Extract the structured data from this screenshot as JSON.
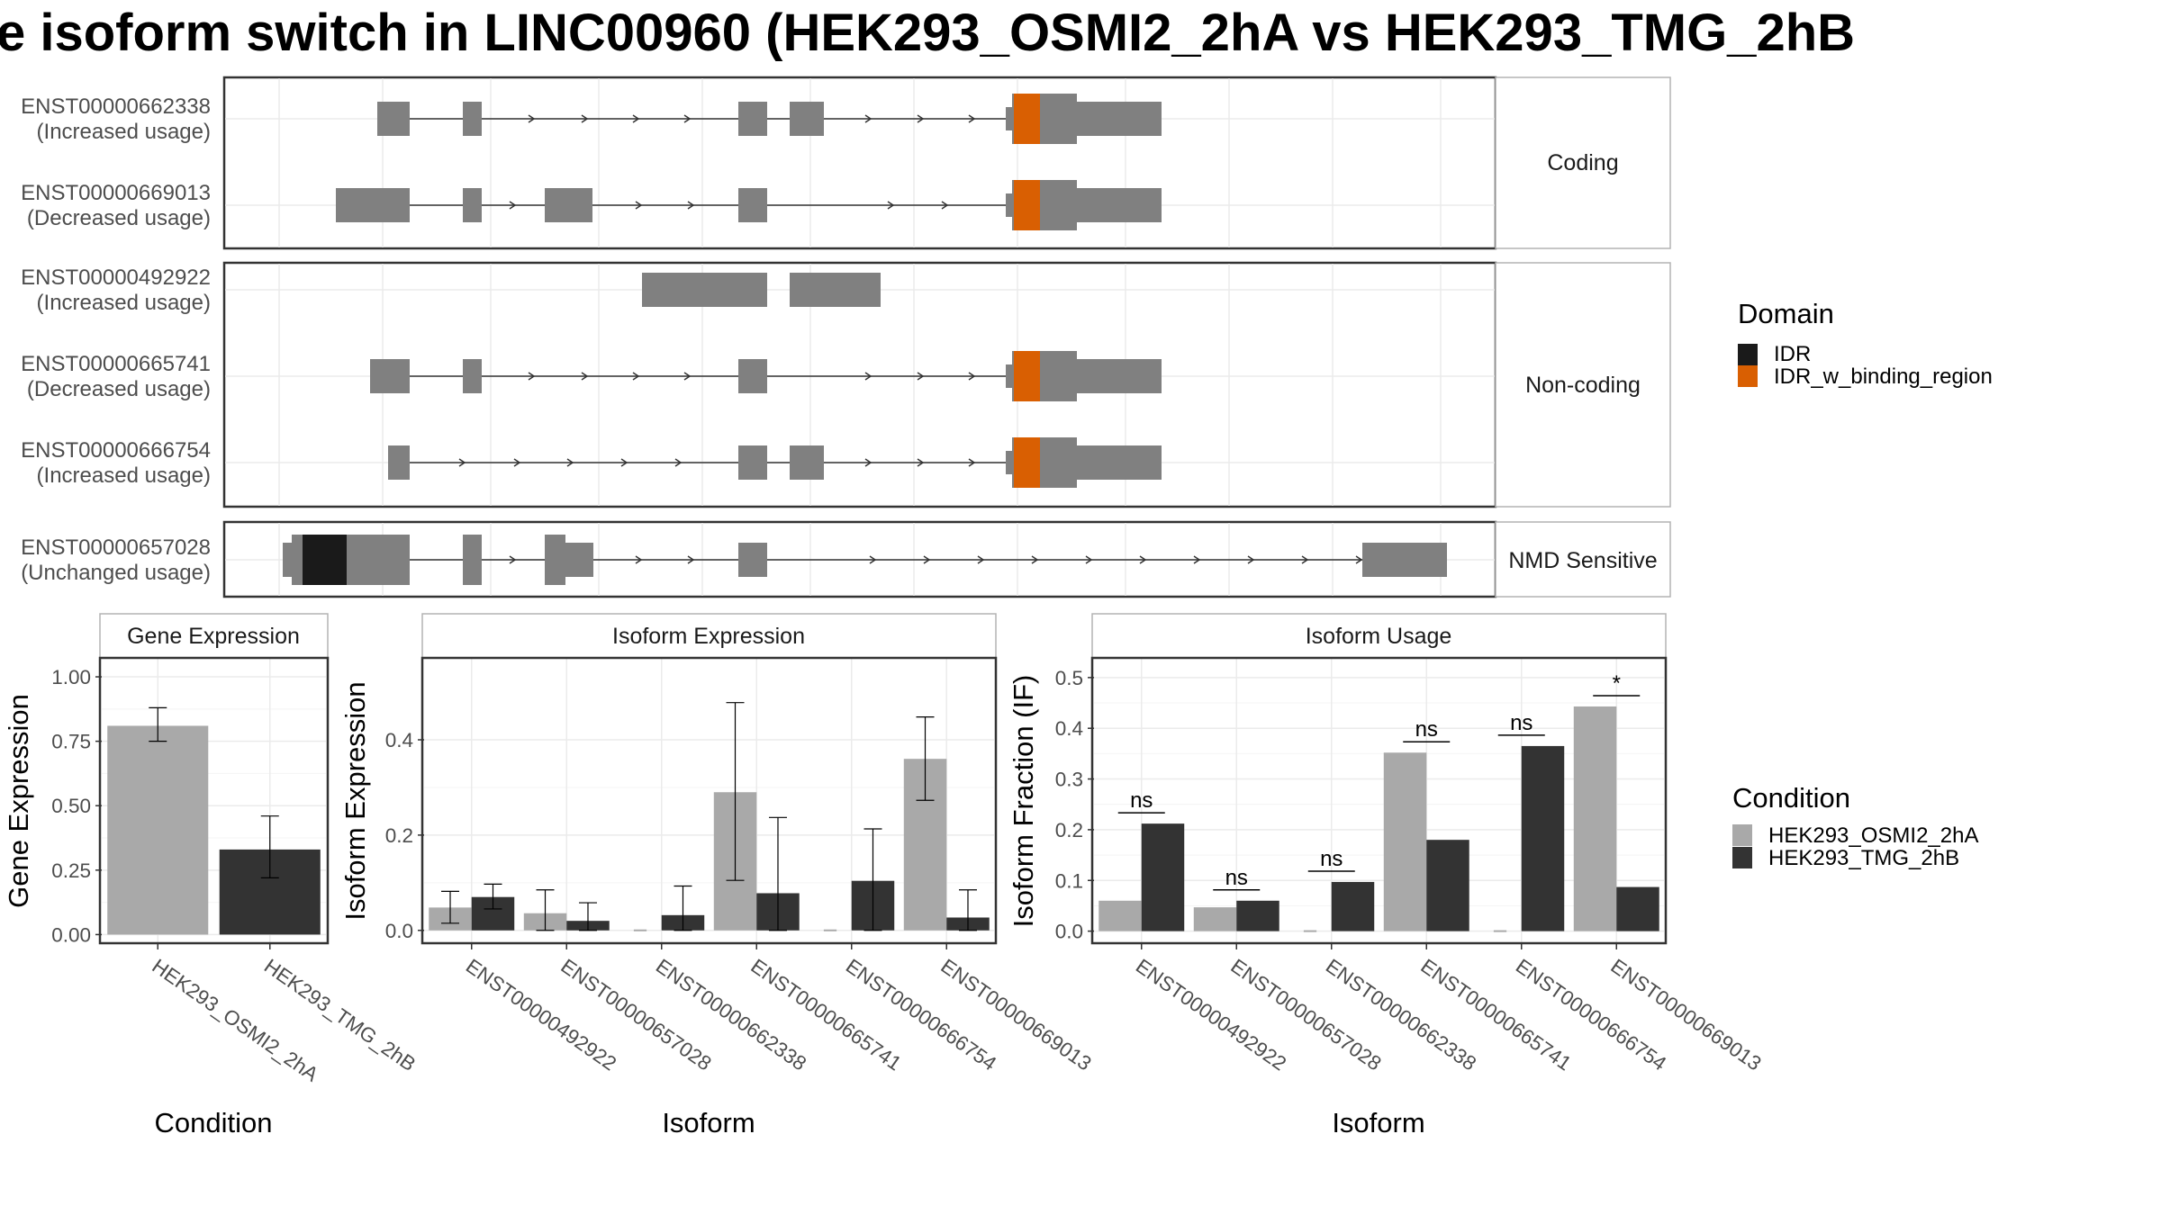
{
  "title": "e isoform switch in LINC00960 (HEK293_OSMI2_2hA vs HEK293_TMG_2hB",
  "colors": {
    "exon": "#808080",
    "IDR": "#1a1a1a",
    "IDR_w_binding_region": "#d95f02",
    "HEK293_OSMI2_2hA": "#a9a9a9",
    "HEK293_TMG_2hB": "#333333"
  },
  "domain_legend": {
    "title": "Domain",
    "items": [
      "IDR",
      "IDR_w_binding_region"
    ]
  },
  "condition_legend": {
    "title": "Condition",
    "items": [
      "HEK293_OSMI2_2hA",
      "HEK293_TMG_2hB"
    ]
  },
  "structure": {
    "panels": [
      {
        "label": "Coding",
        "isoforms": [
          {
            "id": "ENST00000662338",
            "usage": "(Increased usage)"
          },
          {
            "id": "ENST00000669013",
            "usage": "(Decreased usage)"
          }
        ]
      },
      {
        "label": "Non-coding",
        "isoforms": [
          {
            "id": "ENST00000492922",
            "usage": "(Increased usage)"
          },
          {
            "id": "ENST00000665741",
            "usage": "(Decreased usage)"
          },
          {
            "id": "ENST00000666754",
            "usage": "(Increased usage)"
          }
        ]
      },
      {
        "label": "NMD Sensitive",
        "isoforms": [
          {
            "id": "ENST00000657028",
            "usage": "(Unchanged usage)"
          }
        ]
      }
    ]
  },
  "chart_data": [
    {
      "type": "bar",
      "panel": "Gene Expression",
      "xlabel": "Condition",
      "ylabel": "Gene Expression",
      "categories": [
        "HEK293_OSMI2_2hA",
        "HEK293_TMG_2hB"
      ],
      "values": [
        0.81,
        0.33
      ],
      "errors": [
        [
          0.75,
          0.88
        ],
        [
          0.22,
          0.46
        ]
      ],
      "ylim": [
        -0.03,
        1.07
      ],
      "yticks": [
        "0.00",
        "0.25",
        "0.50",
        "0.75",
        "1.00"
      ]
    },
    {
      "type": "bar",
      "panel": "Isoform Expression",
      "xlabel": "Isoform",
      "ylabel": "Isoform Expression",
      "categories": [
        "ENST00000492922",
        "ENST00000657028",
        "ENST00000662338",
        "ENST00000665741",
        "ENST00000666754",
        "ENST00000669013"
      ],
      "series": [
        {
          "name": "HEK293_OSMI2_2hA",
          "values": [
            0.048,
            0.036,
            0.0,
            0.29,
            0.0,
            0.36
          ],
          "errors": [
            [
              0.015,
              0.082
            ],
            [
              0.0,
              0.085
            ],
            [
              0.0,
              0.0
            ],
            [
              0.105,
              0.478
            ],
            [
              0.0,
              0.0
            ],
            [
              0.273,
              0.448
            ]
          ]
        },
        {
          "name": "HEK293_TMG_2hB",
          "values": [
            0.07,
            0.02,
            0.032,
            0.078,
            0.104,
            0.027
          ],
          "errors": [
            [
              0.045,
              0.097
            ],
            [
              0.0,
              0.058
            ],
            [
              0.0,
              0.093
            ],
            [
              0.0,
              0.237
            ],
            [
              0.0,
              0.213
            ],
            [
              0.0,
              0.085
            ]
          ]
        }
      ],
      "ylim": [
        -0.025,
        0.57
      ],
      "yticks": [
        "0.0",
        "0.2",
        "0.4"
      ]
    },
    {
      "type": "bar",
      "panel": "Isoform Usage",
      "xlabel": "Isoform",
      "ylabel": "Isoform Fraction (IF)",
      "categories": [
        "ENST00000492922",
        "ENST00000657028",
        "ENST00000662338",
        "ENST00000665741",
        "ENST00000666754",
        "ENST00000669013"
      ],
      "series": [
        {
          "name": "HEK293_OSMI2_2hA",
          "values": [
            0.06,
            0.047,
            0.0,
            0.352,
            0.0,
            0.443
          ]
        },
        {
          "name": "HEK293_TMG_2hB",
          "values": [
            0.212,
            0.06,
            0.097,
            0.18,
            0.365,
            0.087
          ]
        }
      ],
      "significance": [
        "ns",
        "ns",
        "ns",
        "ns",
        "ns",
        "*"
      ],
      "ylim": [
        -0.022,
        0.537
      ],
      "yticks": [
        "0.0",
        "0.1",
        "0.2",
        "0.3",
        "0.4",
        "0.5"
      ]
    }
  ]
}
